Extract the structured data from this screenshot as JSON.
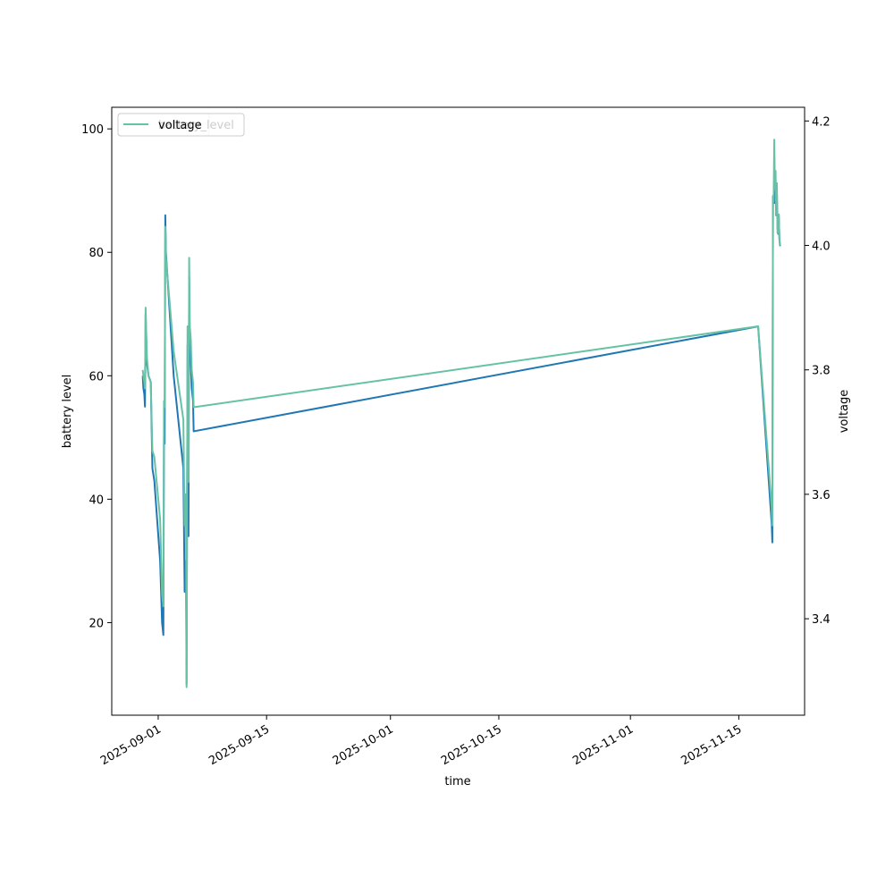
{
  "chart_data": {
    "type": "line",
    "xlabel": "time",
    "ylabel": "battery level",
    "ylabel_right": "voltage",
    "x_tick_labels": [
      "2025-09-01",
      "2025-09-15",
      "2025-10-01",
      "2025-10-15",
      "2025-11-01",
      "2025-11-15"
    ],
    "x_tick_dates": [
      "2025-09-01",
      "2025-09-15",
      "2025-10-01",
      "2025-10-15",
      "2025-11-01",
      "2025-11-15"
    ],
    "xlim": [
      "2025-08-26T00:00",
      "2025-11-23T12:00"
    ],
    "ylim": [
      5,
      103.5
    ],
    "yticks": [
      20,
      40,
      60,
      80,
      100
    ],
    "ylim_right": [
      3.245,
      4.222
    ],
    "yticks_right": [
      3.4,
      3.6,
      3.8,
      4.0,
      4.2
    ],
    "grid": false,
    "legend": {
      "placement": "top-left",
      "entries": [
        "battery_level",
        "voltage"
      ],
      "overlapping": true
    },
    "series": [
      {
        "name": "battery_level",
        "axis": "left",
        "color": "#1f77b4",
        "points": [
          [
            "2025-08-30T00:00",
            60
          ],
          [
            "2025-08-30T02:00",
            58
          ],
          [
            "2025-08-30T05:00",
            57
          ],
          [
            "2025-08-30T07:00",
            55
          ],
          [
            "2025-08-30T09:00",
            70
          ],
          [
            "2025-08-30T13:00",
            62
          ],
          [
            "2025-08-30T18:00",
            60
          ],
          [
            "2025-08-31T01:00",
            59
          ],
          [
            "2025-08-31T06:00",
            45
          ],
          [
            "2025-08-31T12:00",
            43
          ],
          [
            "2025-09-01T06:00",
            30
          ],
          [
            "2025-09-01T12:00",
            20
          ],
          [
            "2025-09-01T16:00",
            18
          ],
          [
            "2025-09-01T18:00",
            50
          ],
          [
            "2025-09-01T20:00",
            49
          ],
          [
            "2025-09-01T22:00",
            86
          ],
          [
            "2025-09-02T00:00",
            80
          ],
          [
            "2025-09-03T00:00",
            60
          ],
          [
            "2025-09-04T06:00",
            45
          ],
          [
            "2025-09-04T10:00",
            25
          ],
          [
            "2025-09-04T14:00",
            30
          ],
          [
            "2025-09-04T16:00",
            10
          ],
          [
            "2025-09-04T19:00",
            65
          ],
          [
            "2025-09-04T22:00",
            34
          ],
          [
            "2025-09-05T00:00",
            76
          ],
          [
            "2025-09-05T02:00",
            65
          ],
          [
            "2025-09-05T05:00",
            62
          ],
          [
            "2025-09-05T08:00",
            58
          ],
          [
            "2025-09-05T12:00",
            56
          ],
          [
            "2025-09-05T14:00",
            51
          ],
          [
            "2025-11-17T12:00",
            68
          ],
          [
            "2025-11-19T06:00",
            36
          ],
          [
            "2025-11-19T08:00",
            33
          ],
          [
            "2025-11-19T10:00",
            89
          ],
          [
            "2025-11-19T12:00",
            88
          ],
          [
            "2025-11-19T14:00",
            92
          ],
          [
            "2025-11-19T16:00",
            88
          ],
          [
            "2025-11-19T18:00",
            91
          ],
          [
            "2025-11-19T20:00",
            86
          ],
          [
            "2025-11-19T22:00",
            90
          ],
          [
            "2025-11-20T00:00",
            84
          ],
          [
            "2025-11-20T02:00",
            83
          ],
          [
            "2025-11-20T04:00",
            86
          ],
          [
            "2025-11-20T06:00",
            82
          ],
          [
            "2025-11-20T08:00",
            81
          ]
        ]
      },
      {
        "name": "voltage",
        "axis": "right",
        "color": "#66c2a5",
        "points": [
          [
            "2025-08-30T00:00",
            3.8
          ],
          [
            "2025-08-30T02:00",
            3.79
          ],
          [
            "2025-08-30T05:00",
            3.78
          ],
          [
            "2025-08-30T07:00",
            3.77
          ],
          [
            "2025-08-30T09:00",
            3.9
          ],
          [
            "2025-08-30T13:00",
            3.82
          ],
          [
            "2025-08-30T18:00",
            3.79
          ],
          [
            "2025-08-31T01:00",
            3.78
          ],
          [
            "2025-08-31T06:00",
            3.67
          ],
          [
            "2025-08-31T12:00",
            3.66
          ],
          [
            "2025-09-01T06:00",
            3.56
          ],
          [
            "2025-09-01T12:00",
            3.44
          ],
          [
            "2025-09-01T16:00",
            3.42
          ],
          [
            "2025-09-01T18:00",
            3.75
          ],
          [
            "2025-09-01T20:00",
            3.74
          ],
          [
            "2025-09-01T22:00",
            4.03
          ],
          [
            "2025-09-02T00:00",
            3.98
          ],
          [
            "2025-09-03T00:00",
            3.83
          ],
          [
            "2025-09-04T06:00",
            3.72
          ],
          [
            "2025-09-04T10:00",
            3.55
          ],
          [
            "2025-09-04T14:00",
            3.6
          ],
          [
            "2025-09-04T16:00",
            3.29
          ],
          [
            "2025-09-04T19:00",
            3.87
          ],
          [
            "2025-09-04T22:00",
            3.62
          ],
          [
            "2025-09-05T00:00",
            3.98
          ],
          [
            "2025-09-05T02:00",
            3.87
          ],
          [
            "2025-09-05T05:00",
            3.85
          ],
          [
            "2025-09-05T08:00",
            3.8
          ],
          [
            "2025-09-05T12:00",
            3.78
          ],
          [
            "2025-09-05T14:00",
            3.74
          ],
          [
            "2025-11-17T12:00",
            3.87
          ],
          [
            "2025-11-19T06:00",
            3.58
          ],
          [
            "2025-11-19T08:00",
            3.55
          ],
          [
            "2025-11-19T10:00",
            4.08
          ],
          [
            "2025-11-19T12:00",
            4.07
          ],
          [
            "2025-11-19T14:00",
            4.17
          ],
          [
            "2025-11-19T16:00",
            4.09
          ],
          [
            "2025-11-19T18:00",
            4.12
          ],
          [
            "2025-11-19T20:00",
            4.05
          ],
          [
            "2025-11-19T22:00",
            4.1
          ],
          [
            "2025-11-20T00:00",
            4.02
          ],
          [
            "2025-11-20T02:00",
            4.03
          ],
          [
            "2025-11-20T04:00",
            4.05
          ],
          [
            "2025-11-20T06:00",
            4.01
          ],
          [
            "2025-11-20T08:00",
            4.0
          ]
        ]
      }
    ]
  }
}
